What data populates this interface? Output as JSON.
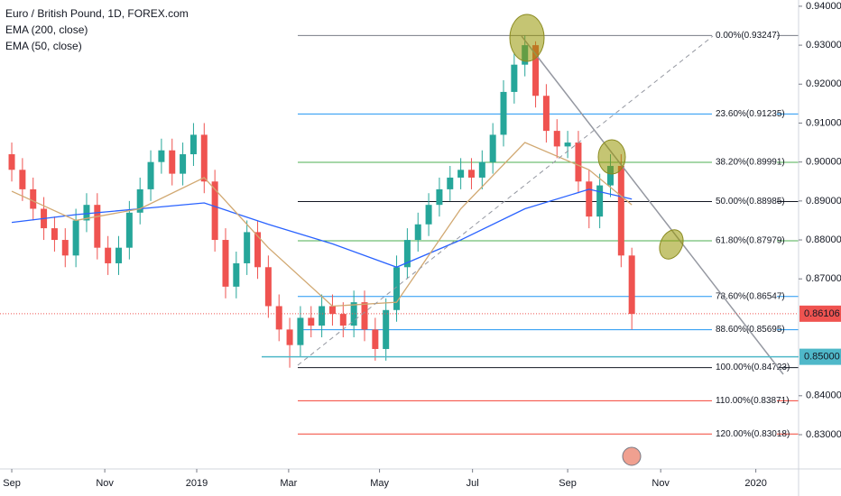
{
  "chart_data": {
    "type": "candlestick",
    "title": "Euro / British Pound, 1D, FOREX.com",
    "up_color": "#26a69a",
    "down_color": "#ef5350",
    "candles": {
      "open": [
        0.902,
        0.898,
        0.893,
        0.888,
        0.883,
        0.88,
        0.876,
        0.885,
        0.889,
        0.878,
        0.874,
        0.878,
        0.887,
        0.893,
        0.9,
        0.903,
        0.897,
        0.902,
        0.907,
        0.895,
        0.88,
        0.868,
        0.874,
        0.882,
        0.873,
        0.863,
        0.857,
        0.853,
        0.86,
        0.858,
        0.863,
        0.861,
        0.858,
        0.864,
        0.857,
        0.852,
        0.862,
        0.873,
        0.88,
        0.884,
        0.889,
        0.893,
        0.896,
        0.898,
        0.896,
        0.9,
        0.907,
        0.918,
        0.925,
        0.93,
        0.917,
        0.908,
        0.904,
        0.905,
        0.895,
        0.886,
        0.894,
        0.899,
        0.876
      ],
      "high": [
        0.905,
        0.901,
        0.896,
        0.891,
        0.886,
        0.883,
        0.888,
        0.892,
        0.892,
        0.881,
        0.881,
        0.89,
        0.896,
        0.903,
        0.906,
        0.906,
        0.905,
        0.91,
        0.91,
        0.898,
        0.883,
        0.877,
        0.885,
        0.885,
        0.876,
        0.866,
        0.86,
        0.863,
        0.863,
        0.866,
        0.866,
        0.864,
        0.867,
        0.867,
        0.86,
        0.865,
        0.876,
        0.883,
        0.887,
        0.892,
        0.896,
        0.899,
        0.901,
        0.901,
        0.903,
        0.91,
        0.921,
        0.928,
        0.9325,
        0.931,
        0.92,
        0.911,
        0.908,
        0.908,
        0.898,
        0.897,
        0.902,
        0.902,
        0.878
      ],
      "low": [
        0.895,
        0.89,
        0.885,
        0.88,
        0.877,
        0.873,
        0.873,
        0.882,
        0.875,
        0.871,
        0.871,
        0.875,
        0.884,
        0.89,
        0.897,
        0.894,
        0.894,
        0.899,
        0.892,
        0.877,
        0.865,
        0.865,
        0.871,
        0.87,
        0.86,
        0.854,
        0.8472,
        0.85,
        0.855,
        0.855,
        0.858,
        0.855,
        0.855,
        0.854,
        0.849,
        0.849,
        0.859,
        0.87,
        0.877,
        0.881,
        0.886,
        0.89,
        0.893,
        0.893,
        0.893,
        0.897,
        0.904,
        0.915,
        0.922,
        0.914,
        0.905,
        0.901,
        0.901,
        0.892,
        0.883,
        0.883,
        0.891,
        0.873,
        0.857
      ],
      "close": [
        0.898,
        0.893,
        0.888,
        0.883,
        0.88,
        0.876,
        0.885,
        0.889,
        0.878,
        0.874,
        0.878,
        0.887,
        0.893,
        0.9,
        0.903,
        0.897,
        0.902,
        0.907,
        0.895,
        0.88,
        0.868,
        0.874,
        0.882,
        0.873,
        0.863,
        0.857,
        0.853,
        0.86,
        0.858,
        0.863,
        0.861,
        0.858,
        0.864,
        0.857,
        0.852,
        0.862,
        0.873,
        0.88,
        0.884,
        0.889,
        0.893,
        0.896,
        0.898,
        0.896,
        0.9,
        0.907,
        0.918,
        0.925,
        0.93,
        0.917,
        0.908,
        0.904,
        0.905,
        0.895,
        0.886,
        0.894,
        0.899,
        0.876,
        0.861
      ]
    },
    "series": [
      {
        "name": "EMA (200, close)",
        "color": "#2962ff",
        "x": [
          0,
          6,
          12,
          18,
          24,
          30,
          36,
          42,
          48,
          54,
          58
        ],
        "values": [
          0.8845,
          0.8865,
          0.888,
          0.8895,
          0.884,
          0.879,
          0.873,
          0.88,
          0.888,
          0.893,
          0.8905
        ]
      },
      {
        "name": "EMA (50, close)",
        "color": "#d1a871",
        "x": [
          0,
          6,
          12,
          18,
          24,
          30,
          36,
          42,
          48,
          54,
          58
        ],
        "values": [
          0.8925,
          0.885,
          0.888,
          0.896,
          0.878,
          0.863,
          0.864,
          0.888,
          0.905,
          0.898,
          0.889
        ]
      }
    ],
    "fib_levels": [
      {
        "label": "0.00%(0.93247)",
        "value": 0.93247,
        "color": "#787b86"
      },
      {
        "label": "23.60%(0.91235)",
        "value": 0.91235,
        "color": "#2196f3"
      },
      {
        "label": "38.20%(0.89991)",
        "value": 0.89991,
        "color": "#4caf50"
      },
      {
        "label": "50.00%(0.88985)",
        "value": 0.88985,
        "color": "#131722"
      },
      {
        "label": "61.80%(0.87979)",
        "value": 0.87979,
        "color": "#4caf50"
      },
      {
        "label": "78.60%(0.86547)",
        "value": 0.86547,
        "color": "#2196f3"
      },
      {
        "label": "88.60%(0.85695)",
        "value": 0.85695,
        "color": "#2196f3"
      },
      {
        "label": "100.00%(0.84723)",
        "value": 0.84723,
        "color": "#131722"
      },
      {
        "label": "110.00%(0.83871)",
        "value": 0.83871,
        "color": "#f44336"
      },
      {
        "label": "120.00%(0.83018)",
        "value": 0.83018,
        "color": "#f44336"
      }
    ],
    "price_lines": [
      {
        "value": 0.86106,
        "label": "0.86106",
        "color": "#ef5350"
      },
      {
        "value": 0.85,
        "label": "0.85000",
        "color": "#4fb8c9"
      }
    ],
    "ylim": [
      0.8212,
      0.9416
    ],
    "yticks": [
      {
        "value": 0.94,
        "label": "0.94000"
      },
      {
        "value": 0.93,
        "label": "0.93000"
      },
      {
        "value": 0.92,
        "label": "0.92000"
      },
      {
        "value": 0.91,
        "label": "0.91000"
      },
      {
        "value": 0.9,
        "label": "0.90000"
      },
      {
        "value": 0.89,
        "label": "0.89000"
      },
      {
        "value": 0.88,
        "label": "0.88000"
      },
      {
        "value": 0.87,
        "label": "0.87000"
      },
      {
        "value": 0.84,
        "label": "0.84000"
      },
      {
        "value": 0.83,
        "label": "0.83000"
      }
    ],
    "xlim": [
      -1.1,
      73.6
    ],
    "xticks": [
      {
        "value": 0,
        "label": "Sep"
      },
      {
        "value": 8.7,
        "label": "Nov"
      },
      {
        "value": 17.3,
        "label": "2019"
      },
      {
        "value": 25.9,
        "label": "Mar"
      },
      {
        "value": 34.4,
        "label": "May"
      },
      {
        "value": 43.1,
        "label": "Jul"
      },
      {
        "value": 52,
        "label": "Sep"
      },
      {
        "value": 60.7,
        "label": "Nov"
      },
      {
        "value": 69.6,
        "label": "2020"
      }
    ]
  }
}
